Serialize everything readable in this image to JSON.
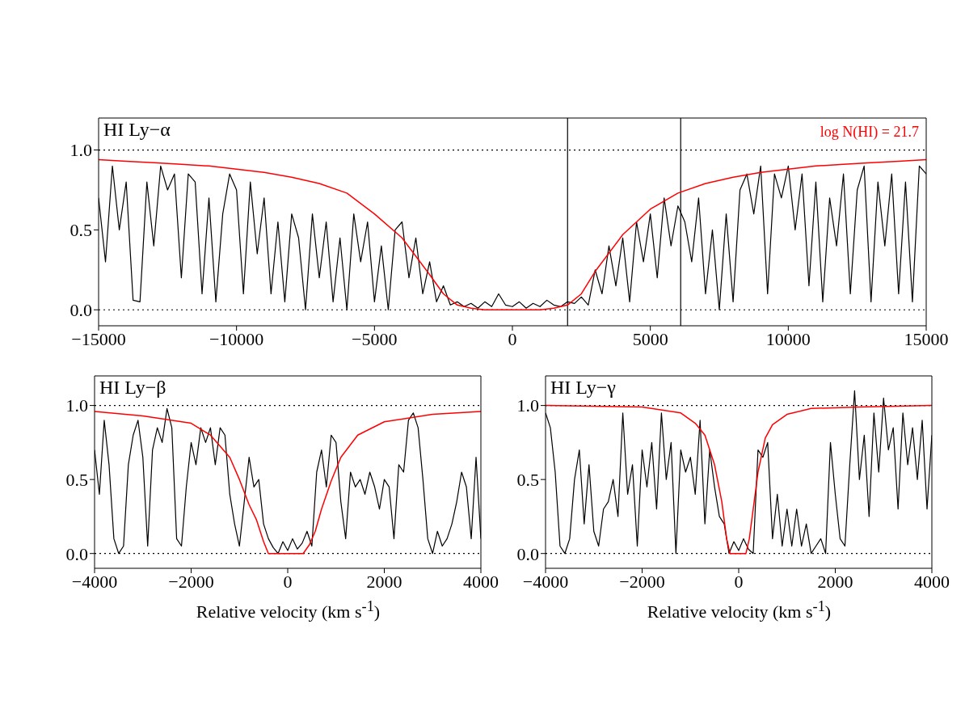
{
  "chart_data": [
    {
      "type": "line",
      "annotations": [
        "HI Ly−α",
        "log N(HI) = 21.7"
      ],
      "x": [
        -15000,
        -14750,
        -14500,
        -14250,
        -14000,
        -13750,
        -13500,
        -13250,
        -13000,
        -12750,
        -12500,
        -12250,
        -12000,
        -11750,
        -11500,
        -11250,
        -11000,
        -10750,
        -10500,
        -10250,
        -10000,
        -9750,
        -9500,
        -9250,
        -9000,
        -8750,
        -8500,
        -8250,
        -8000,
        -7750,
        -7500,
        -7250,
        -7000,
        -6750,
        -6500,
        -6250,
        -6000,
        -5750,
        -5500,
        -5250,
        -5000,
        -4750,
        -4500,
        -4250,
        -4000,
        -3750,
        -3500,
        -3250,
        -3000,
        -2750,
        -2500,
        -2250,
        -2000,
        -1750,
        -1500,
        -1250,
        -1000,
        -750,
        -500,
        -250,
        0,
        250,
        500,
        750,
        1000,
        1250,
        1500,
        1750,
        2000,
        2250,
        2500,
        2750,
        3000,
        3250,
        3500,
        3750,
        4000,
        4250,
        4500,
        4750,
        5000,
        5250,
        5500,
        5750,
        6000,
        6250,
        6500,
        6750,
        7000,
        7250,
        7500,
        7750,
        8000,
        8250,
        8500,
        8750,
        9000,
        9250,
        9500,
        9750,
        10000,
        10250,
        10500,
        10750,
        11000,
        11250,
        11500,
        11750,
        12000,
        12250,
        12500,
        12750,
        13000,
        13250,
        13500,
        13750,
        14000,
        14250,
        14500,
        14750,
        15000
      ],
      "series": [
        {
          "color": "#000000",
          "values": [
            0.7,
            0.3,
            0.9,
            0.5,
            0.8,
            0.06,
            0.05,
            0.8,
            0.4,
            0.9,
            0.75,
            0.85,
            0.2,
            0.85,
            0.8,
            0.1,
            0.7,
            0.05,
            0.6,
            0.85,
            0.75,
            0.1,
            0.8,
            0.35,
            0.7,
            0.1,
            0.55,
            0.05,
            0.6,
            0.45,
            0.0,
            0.6,
            0.2,
            0.55,
            0.05,
            0.45,
            0.0,
            0.6,
            0.3,
            0.55,
            0.05,
            0.4,
            0.0,
            0.5,
            0.55,
            0.2,
            0.45,
            0.1,
            0.3,
            0.05,
            0.15,
            0.03,
            0.05,
            0.02,
            0.04,
            0.01,
            0.05,
            0.02,
            0.1,
            0.03,
            0.02,
            0.05,
            0.01,
            0.04,
            0.02,
            0.06,
            0.03,
            0.02,
            0.05,
            0.04,
            0.08,
            0.03,
            0.25,
            0.1,
            0.4,
            0.15,
            0.45,
            0.05,
            0.55,
            0.3,
            0.6,
            0.2,
            0.7,
            0.4,
            0.65,
            0.55,
            0.3,
            0.7,
            0.1,
            0.5,
            0.0,
            0.6,
            0.05,
            0.75,
            0.85,
            0.6,
            0.9,
            0.1,
            0.85,
            0.7,
            0.9,
            0.5,
            0.85,
            0.15,
            0.8,
            0.05,
            0.7,
            0.4,
            0.85,
            0.1,
            0.75,
            0.9,
            0.05,
            0.8,
            0.4,
            0.85,
            0.1,
            0.8,
            0.05,
            0.9,
            0.85
          ]
        },
        {
          "color": "#ff0000",
          "x": [
            -15000,
            -14000,
            -13000,
            -12000,
            -11000,
            -10000,
            -9000,
            -8000,
            -7000,
            -6000,
            -5000,
            -4000,
            -3000,
            -2500,
            -2000,
            -1500,
            -1000,
            0,
            1000,
            1500,
            2000,
            2500,
            3000,
            4000,
            5000,
            6000,
            7000,
            8000,
            9000,
            10000,
            11000,
            12000,
            13000,
            14000,
            15000
          ],
          "values": [
            0.94,
            0.93,
            0.92,
            0.91,
            0.9,
            0.88,
            0.86,
            0.83,
            0.79,
            0.73,
            0.6,
            0.45,
            0.22,
            0.1,
            0.03,
            0.01,
            0,
            0,
            0,
            0.01,
            0.03,
            0.1,
            0.24,
            0.47,
            0.63,
            0.73,
            0.79,
            0.83,
            0.86,
            0.88,
            0.9,
            0.91,
            0.92,
            0.93,
            0.94
          ]
        }
      ],
      "xlim": [
        -15000,
        15000
      ],
      "xticks": [
        {
          "value": -15000,
          "label": "−15000"
        },
        {
          "value": -10000,
          "label": "−10000"
        },
        {
          "value": -5000,
          "label": "−5000"
        },
        0,
        5000,
        10000,
        15000
      ],
      "ylim": [
        -0.1,
        1.2
      ],
      "yticks": [
        {
          "value": 0,
          "label": "0.0"
        },
        {
          "value": 0.5,
          "label": "0.5"
        },
        {
          "value": 1,
          "label": "1.0"
        }
      ],
      "ref_lines": [
        {
          "axis": "y",
          "value": 0,
          "color": "#000000",
          "line_style": "dotted"
        },
        {
          "axis": "y",
          "value": 1,
          "color": "#000000",
          "line_style": "dotted"
        },
        {
          "axis": "x",
          "value": 2000,
          "color": "#000000",
          "line_style": "solid"
        },
        {
          "axis": "x",
          "value": 6100,
          "color": "#000000",
          "line_style": "solid"
        }
      ]
    },
    {
      "type": "line",
      "annotations": [
        "HI Ly−β"
      ],
      "xlabel": "Relative velocity (km s$^{-1}$)",
      "x": [
        -4000,
        -3900,
        -3800,
        -3700,
        -3600,
        -3500,
        -3400,
        -3300,
        -3200,
        -3100,
        -3000,
        -2900,
        -2800,
        -2700,
        -2600,
        -2500,
        -2400,
        -2300,
        -2200,
        -2100,
        -2000,
        -1900,
        -1800,
        -1700,
        -1600,
        -1500,
        -1400,
        -1300,
        -1200,
        -1100,
        -1000,
        -900,
        -800,
        -700,
        -600,
        -500,
        -400,
        -300,
        -200,
        -100,
        0,
        100,
        200,
        300,
        400,
        500,
        600,
        700,
        800,
        900,
        1000,
        1100,
        1200,
        1300,
        1400,
        1500,
        1600,
        1700,
        1800,
        1900,
        2000,
        2100,
        2200,
        2300,
        2400,
        2500,
        2600,
        2700,
        2800,
        2900,
        3000,
        3100,
        3200,
        3300,
        3400,
        3500,
        3600,
        3700,
        3800,
        3900,
        4000
      ],
      "series": [
        {
          "color": "#000000",
          "values": [
            0.7,
            0.4,
            0.9,
            0.6,
            0.1,
            0.0,
            0.05,
            0.6,
            0.8,
            0.9,
            0.65,
            0.05,
            0.7,
            0.85,
            0.75,
            0.98,
            0.85,
            0.1,
            0.05,
            0.45,
            0.75,
            0.6,
            0.85,
            0.75,
            0.85,
            0.6,
            0.85,
            0.8,
            0.4,
            0.2,
            0.05,
            0.35,
            0.65,
            0.45,
            0.5,
            0.2,
            0.1,
            0.04,
            0.0,
            0.08,
            0.02,
            0.1,
            0.03,
            0.07,
            0.15,
            0.05,
            0.55,
            0.7,
            0.45,
            0.8,
            0.75,
            0.35,
            0.1,
            0.55,
            0.45,
            0.5,
            0.4,
            0.55,
            0.45,
            0.3,
            0.5,
            0.45,
            0.1,
            0.6,
            0.55,
            0.9,
            0.95,
            0.85,
            0.5,
            0.1,
            0.0,
            0.15,
            0.05,
            0.1,
            0.2,
            0.35,
            0.55,
            0.45,
            0.1,
            0.65,
            0.1
          ]
        },
        {
          "color": "#ff0000",
          "x": [
            -4000,
            -3000,
            -2000,
            -1600,
            -1200,
            -1000,
            -800,
            -650,
            -500,
            -400,
            0,
            320,
            450,
            570,
            700,
            900,
            1100,
            1450,
            2000,
            3000,
            4000
          ],
          "values": [
            0.96,
            0.93,
            0.88,
            0.8,
            0.65,
            0.5,
            0.33,
            0.23,
            0.08,
            0,
            0,
            0,
            0.06,
            0.15,
            0.3,
            0.49,
            0.65,
            0.8,
            0.89,
            0.94,
            0.96
          ]
        }
      ],
      "xlim": [
        -4000,
        4000
      ],
      "xticks": [
        {
          "value": -4000,
          "label": "−4000"
        },
        {
          "value": -2000,
          "label": "−2000"
        },
        0,
        2000,
        4000
      ],
      "ylim": [
        -0.1,
        1.2
      ],
      "yticks": [
        {
          "value": 0,
          "label": "0.0"
        },
        {
          "value": 0.5,
          "label": "0.5"
        },
        {
          "value": 1,
          "label": "1.0"
        }
      ],
      "ref_lines": [
        {
          "axis": "y",
          "value": 0,
          "color": "#000000",
          "line_style": "dotted"
        },
        {
          "axis": "y",
          "value": 1,
          "color": "#000000",
          "line_style": "dotted"
        }
      ]
    },
    {
      "type": "line",
      "annotations": [
        "HI Ly−γ"
      ],
      "xlabel": "Relative velocity (km s$^{-1}$)",
      "x": [
        -4000,
        -3900,
        -3800,
        -3700,
        -3600,
        -3500,
        -3400,
        -3300,
        -3200,
        -3100,
        -3000,
        -2900,
        -2800,
        -2700,
        -2600,
        -2500,
        -2400,
        -2300,
        -2200,
        -2100,
        -2000,
        -1900,
        -1800,
        -1700,
        -1600,
        -1500,
        -1400,
        -1300,
        -1200,
        -1100,
        -1000,
        -900,
        -800,
        -700,
        -600,
        -500,
        -400,
        -300,
        -200,
        -100,
        0,
        100,
        200,
        300,
        400,
        500,
        600,
        700,
        800,
        900,
        1000,
        1100,
        1200,
        1300,
        1400,
        1500,
        1600,
        1700,
        1800,
        1900,
        2000,
        2100,
        2200,
        2300,
        2400,
        2500,
        2600,
        2700,
        2800,
        2900,
        3000,
        3100,
        3200,
        3300,
        3400,
        3500,
        3600,
        3700,
        3800,
        3900,
        4000
      ],
      "series": [
        {
          "color": "#000000",
          "values": [
            0.95,
            0.85,
            0.55,
            0.05,
            0.0,
            0.1,
            0.5,
            0.7,
            0.2,
            0.6,
            0.15,
            0.05,
            0.3,
            0.35,
            0.5,
            0.25,
            0.95,
            0.4,
            0.6,
            0.05,
            0.7,
            0.45,
            0.75,
            0.3,
            0.95,
            0.5,
            0.75,
            0.0,
            0.7,
            0.55,
            0.65,
            0.4,
            0.9,
            0.2,
            0.7,
            0.45,
            0.25,
            0.2,
            0.0,
            0.08,
            0.02,
            0.1,
            0.03,
            0.0,
            0.7,
            0.65,
            0.75,
            0.1,
            0.4,
            0.05,
            0.3,
            0.05,
            0.3,
            0.05,
            0.2,
            0.0,
            0.05,
            0.1,
            0.0,
            0.75,
            0.4,
            0.1,
            0.05,
            0.6,
            1.1,
            0.5,
            0.8,
            0.25,
            0.95,
            0.55,
            1.05,
            0.7,
            0.85,
            0.3,
            0.95,
            0.6,
            0.85,
            0.5,
            0.9,
            0.3,
            0.8
          ]
        },
        {
          "color": "#ff0000",
          "x": [
            -4000,
            -2000,
            -1200,
            -900,
            -700,
            -500,
            -350,
            -250,
            -180,
            150,
            220,
            300,
            400,
            550,
            700,
            1000,
            1500,
            2500,
            4000
          ],
          "values": [
            1.0,
            0.99,
            0.95,
            0.88,
            0.8,
            0.6,
            0.35,
            0.1,
            0,
            0,
            0.1,
            0.3,
            0.55,
            0.78,
            0.87,
            0.94,
            0.98,
            0.99,
            1.0
          ]
        }
      ],
      "xlim": [
        -4000,
        4000
      ],
      "xticks": [
        {
          "value": -4000,
          "label": "−4000"
        },
        {
          "value": -2000,
          "label": "−2000"
        },
        0,
        2000,
        4000
      ],
      "ylim": [
        -0.1,
        1.2
      ],
      "yticks": [
        {
          "value": 0,
          "label": "0.0"
        },
        {
          "value": 0.5,
          "label": "0.5"
        },
        {
          "value": 1,
          "label": "1.0"
        }
      ],
      "ref_lines": [
        {
          "axis": "y",
          "value": 0,
          "color": "#000000",
          "line_style": "dotted"
        },
        {
          "axis": "y",
          "value": 1,
          "color": "#000000",
          "line_style": "dotted"
        }
      ]
    }
  ]
}
